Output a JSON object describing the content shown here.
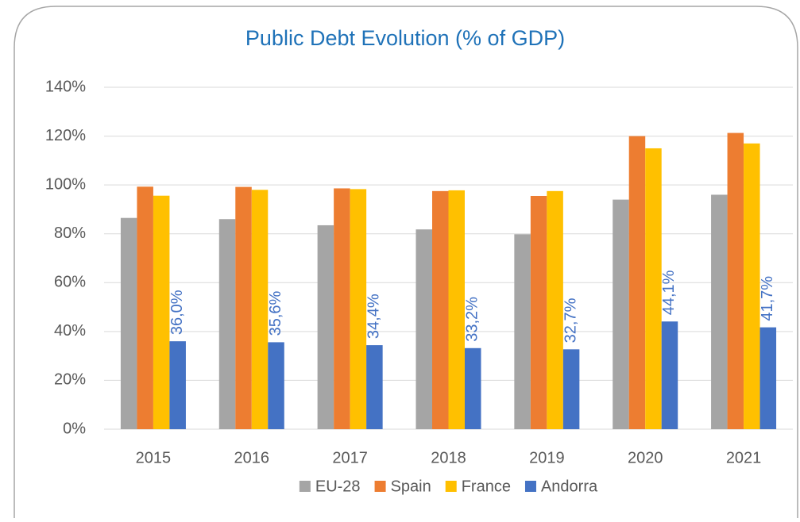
{
  "chart_data": {
    "type": "bar",
    "title": "Public Debt Evolution (% of GDP)",
    "categories": [
      "2015",
      "2016",
      "2017",
      "2018",
      "2019",
      "2020",
      "2021"
    ],
    "series": [
      {
        "name": "EU-28",
        "color": "#a5a5a5",
        "values": [
          86.5,
          86,
          83.5,
          81.8,
          79.8,
          94,
          96
        ]
      },
      {
        "name": "Spain",
        "color": "#ed7d31",
        "values": [
          99.3,
          99.2,
          98.6,
          97.5,
          95.5,
          120,
          121.3
        ]
      },
      {
        "name": "France",
        "color": "#ffc000",
        "values": [
          95.6,
          98,
          98.3,
          97.8,
          97.5,
          115,
          117
        ]
      },
      {
        "name": "Andorra",
        "color": "#4472c4",
        "values": [
          36.0,
          35.6,
          34.4,
          33.2,
          32.7,
          44.1,
          41.7
        ],
        "value_labels": [
          "36,0%",
          "35,6%",
          "34,4%",
          "33,2%",
          "32,7%",
          "44,1%",
          "41,7%"
        ]
      }
    ],
    "ylim": [
      0,
      140
    ],
    "yticks": [
      {
        "value": 0,
        "label": "0%"
      },
      {
        "value": 20,
        "label": "20%"
      },
      {
        "value": 40,
        "label": "40%"
      },
      {
        "value": 60,
        "label": "60%"
      },
      {
        "value": 80,
        "label": "80%"
      },
      {
        "value": 100,
        "label": "100%"
      },
      {
        "value": 120,
        "label": "120%"
      },
      {
        "value": 140,
        "label": "140%"
      }
    ],
    "grid": true,
    "legend": "bottom"
  }
}
